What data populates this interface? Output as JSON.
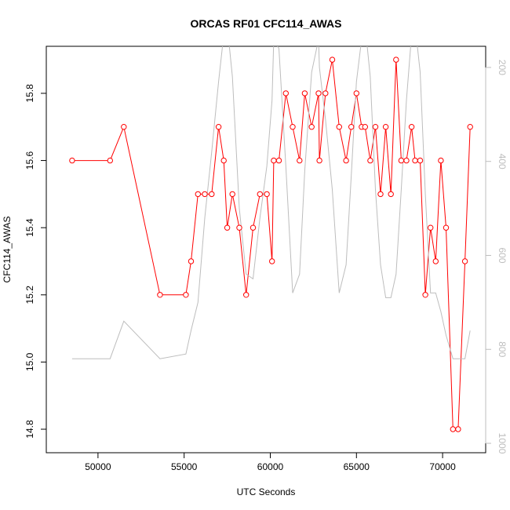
{
  "chart_data": {
    "type": "line",
    "title": "ORCAS RF01 CFC114_AWAS",
    "xlabel": "UTC Seconds",
    "ylabel": "CFC114_AWAS",
    "xlim": [
      47000,
      72500
    ],
    "ylim": [
      14.73,
      15.94
    ],
    "x_ticks": [
      50000,
      55000,
      60000,
      65000,
      70000
    ],
    "y_ticks": [
      14.8,
      15.0,
      15.2,
      15.4,
      15.6,
      15.8
    ],
    "secondary_axis": {
      "label": "",
      "ylim": [
        1020,
        155
      ],
      "ticks": [
        200,
        400,
        600,
        800,
        1000
      ],
      "color": "#bdbdbd"
    },
    "series": [
      {
        "color": "#ff0000",
        "marker": "open-circle",
        "x": [
          48500,
          50700,
          51500,
          53600,
          55100,
          55400,
          55800,
          56200,
          56600,
          57000,
          57300,
          57500,
          57800,
          58200,
          58600,
          59000,
          59400,
          59800,
          60100,
          60200,
          60500,
          60900,
          61300,
          61700,
          62000,
          62400,
          62800,
          62850,
          63200,
          63600,
          64000,
          64400,
          64700,
          65000,
          65300,
          65500,
          65800,
          66100,
          66400,
          66700,
          67000,
          67300,
          67600,
          67900,
          68200,
          68400,
          68700,
          69000,
          69300,
          69600,
          69900,
          70200,
          70600,
          70900,
          71300,
          71600
        ],
        "values": [
          15.6,
          15.6,
          15.7,
          15.2,
          15.2,
          15.3,
          15.5,
          15.5,
          15.5,
          15.7,
          15.6,
          15.4,
          15.5,
          15.4,
          15.2,
          15.4,
          15.5,
          15.5,
          15.3,
          15.6,
          15.6,
          15.8,
          15.7,
          15.6,
          15.8,
          15.7,
          15.8,
          15.6,
          15.8,
          15.9,
          15.7,
          15.6,
          15.7,
          15.8,
          15.7,
          15.7,
          15.6,
          15.7,
          15.5,
          15.7,
          15.5,
          15.9,
          15.6,
          15.6,
          15.7,
          15.6,
          15.6,
          15.2,
          15.4,
          15.3,
          15.6,
          15.4,
          14.8,
          14.8,
          15.3,
          15.7
        ]
      },
      {
        "color": "#bdbdbd",
        "axis": "right",
        "x": [
          48500,
          50700,
          51500,
          53600,
          55100,
          55400,
          55800,
          56200,
          56600,
          57000,
          57300,
          57500,
          57800,
          58200,
          58600,
          59000,
          59400,
          59800,
          60100,
          60200,
          60500,
          60900,
          61300,
          61700,
          62000,
          62400,
          62800,
          62850,
          63200,
          63600,
          64000,
          64400,
          64700,
          65000,
          65300,
          65500,
          65800,
          66100,
          66400,
          66700,
          67000,
          67300,
          67600,
          67900,
          68200,
          68400,
          68700,
          69000,
          69300,
          69600,
          69900,
          70200,
          70600,
          70900,
          71300,
          71600
        ],
        "values": [
          820,
          820,
          740,
          820,
          810,
          760,
          700,
          520,
          380,
          230,
          130,
          110,
          220,
          500,
          640,
          650,
          520,
          410,
          270,
          140,
          160,
          410,
          680,
          640,
          420,
          210,
          140,
          200,
          310,
          460,
          680,
          620,
          430,
          230,
          140,
          110,
          220,
          460,
          620,
          690,
          690,
          640,
          460,
          270,
          130,
          110,
          210,
          470,
          680,
          680,
          720,
          770,
          820,
          820,
          820,
          760
        ]
      }
    ]
  }
}
